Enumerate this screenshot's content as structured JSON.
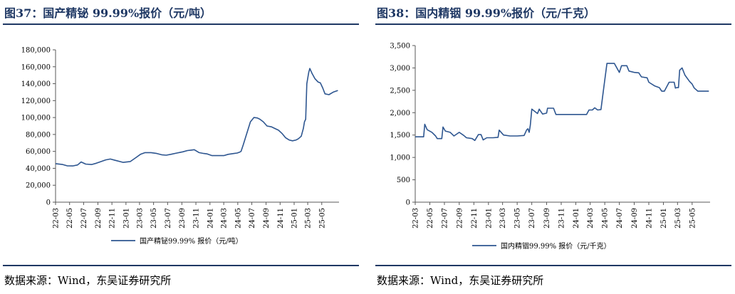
{
  "panels": [
    {
      "title": "图37：国产精铋 99.99%报价（元/吨）",
      "source": "数据来源：Wind，东吴证券研究所"
    },
    {
      "title": "图38：国内精铟 99.99%报价（元/千克）",
      "source": "数据来源：Wind，东吴证券研究所"
    }
  ],
  "colors": {
    "line": "#2e5690",
    "text": "#1f3864",
    "axis": "#595959"
  },
  "chart_data": [
    {
      "type": "line",
      "ylim": [
        0,
        180000
      ],
      "yticks": [
        0,
        20000,
        40000,
        60000,
        80000,
        100000,
        120000,
        140000,
        160000,
        180000
      ],
      "ytick_labels": [
        "0",
        "20,000",
        "40,000",
        "60,000",
        "80,000",
        "100,000",
        "120,000",
        "140,000",
        "160,000",
        "180,000"
      ],
      "xlim": [
        "2022-03-01",
        "2025-07-15"
      ],
      "xtick_labels": [
        "22-03",
        "22-05",
        "22-07",
        "22-09",
        "22-11",
        "23-01",
        "23-03",
        "23-05",
        "23-07",
        "23-09",
        "23-11",
        "24-01",
        "24-03",
        "24-05",
        "24-07",
        "24-09",
        "24-11",
        "25-01",
        "25-03",
        "25-05"
      ],
      "series": [
        {
          "name": "国产精铋99.99% 报价（元/吨）",
          "x": [
            "2022-03-01",
            "2022-04-01",
            "2022-04-20",
            "2022-05-15",
            "2022-06-05",
            "2022-06-20",
            "2022-07-10",
            "2022-08-05",
            "2022-08-25",
            "2022-09-10",
            "2022-10-05",
            "2022-10-25",
            "2022-11-15",
            "2022-12-20",
            "2023-01-20",
            "2023-02-15",
            "2023-03-05",
            "2023-03-25",
            "2023-04-20",
            "2023-05-15",
            "2023-06-05",
            "2023-06-25",
            "2023-07-15",
            "2023-08-10",
            "2023-09-05",
            "2023-09-25",
            "2023-10-10",
            "2023-10-25",
            "2023-11-15",
            "2023-12-05",
            "2023-12-20",
            "2024-01-10",
            "2024-02-10",
            "2024-03-01",
            "2024-03-20",
            "2024-04-15",
            "2024-04-28",
            "2024-05-08",
            "2024-05-15",
            "2024-05-25",
            "2024-06-10",
            "2024-06-25",
            "2024-07-10",
            "2024-07-25",
            "2024-08-05",
            "2024-08-20",
            "2024-09-05",
            "2024-09-25",
            "2024-10-10",
            "2024-10-25",
            "2024-11-10",
            "2024-11-25",
            "2024-12-10",
            "2024-12-25",
            "2025-01-10",
            "2025-01-20",
            "2025-02-01",
            "2025-02-10",
            "2025-02-15",
            "2025-02-20",
            "2025-02-25",
            "2025-03-05",
            "2025-03-10",
            "2025-03-20",
            "2025-04-01",
            "2025-04-15",
            "2025-04-25",
            "2025-05-05",
            "2025-05-15",
            "2025-06-01",
            "2025-06-20",
            "2025-07-10"
          ],
          "y": [
            45500,
            44500,
            43000,
            42800,
            44000,
            47500,
            45000,
            44500,
            46000,
            47500,
            50000,
            51000,
            49500,
            47000,
            48000,
            53000,
            56500,
            58500,
            58500,
            57500,
            56000,
            55500,
            56500,
            58000,
            59500,
            61000,
            61500,
            62000,
            58500,
            57500,
            57000,
            55000,
            55000,
            55000,
            56500,
            57500,
            58000,
            59000,
            60000,
            68000,
            82000,
            95000,
            100000,
            99500,
            98000,
            95000,
            90000,
            89000,
            87000,
            85000,
            81000,
            76000,
            73500,
            72500,
            73500,
            75000,
            78000,
            87000,
            95000,
            98000,
            140000,
            153000,
            158000,
            152000,
            146000,
            142000,
            141000,
            135000,
            128000,
            127000,
            130000,
            132000
          ]
        }
      ]
    },
    {
      "type": "line",
      "ylim": [
        0,
        3500
      ],
      "yticks": [
        0,
        500,
        1000,
        1500,
        2000,
        2500,
        3000,
        3500
      ],
      "ytick_labels": [
        "0",
        "500",
        "1,000",
        "1,500",
        "2,000",
        "2,500",
        "3,000",
        "3,500"
      ],
      "xlim": [
        "2022-03-01",
        "2025-07-15"
      ],
      "xtick_labels": [
        "22-03",
        "22-05",
        "22-07",
        "22-09",
        "22-11",
        "23-01",
        "23-03",
        "23-05",
        "23-07",
        "23-09",
        "23-11",
        "24-01",
        "24-03",
        "24-05",
        "24-07",
        "24-09",
        "24-11",
        "25-01",
        "25-03",
        "25-05"
      ],
      "series": [
        {
          "name": "国内精铟99.99% 报价（元/千克）",
          "x": [
            "2022-03-01",
            "2022-04-05",
            "2022-04-10",
            "2022-04-20",
            "2022-05-10",
            "2022-05-25",
            "2022-06-01",
            "2022-06-20",
            "2022-06-25",
            "2022-07-05",
            "2022-07-25",
            "2022-08-10",
            "2022-09-01",
            "2022-09-20",
            "2022-10-01",
            "2022-10-25",
            "2022-11-05",
            "2022-11-20",
            "2022-12-01",
            "2022-12-10",
            "2022-12-25",
            "2023-01-20",
            "2023-02-10",
            "2023-02-15",
            "2023-03-05",
            "2023-04-01",
            "2023-05-01",
            "2023-05-30",
            "2023-06-10",
            "2023-06-15",
            "2023-06-20",
            "2023-06-25",
            "2023-07-01",
            "2023-07-25",
            "2023-08-01",
            "2023-08-15",
            "2023-09-01",
            "2023-09-05",
            "2023-09-30",
            "2023-10-10",
            "2023-11-15",
            "2023-12-15",
            "2024-01-15",
            "2024-02-15",
            "2024-02-25",
            "2024-03-10",
            "2024-03-20",
            "2024-04-01",
            "2024-04-15",
            "2024-04-25",
            "2024-05-10",
            "2024-06-10",
            "2024-07-01",
            "2024-07-10",
            "2024-08-01",
            "2024-08-10",
            "2024-09-01",
            "2024-09-20",
            "2024-10-01",
            "2024-10-25",
            "2024-11-01",
            "2024-11-25",
            "2024-12-15",
            "2024-12-25",
            "2025-01-05",
            "2025-01-25",
            "2025-02-15",
            "2025-02-20",
            "2025-02-25",
            "2025-03-05",
            "2025-03-10",
            "2025-03-20",
            "2025-04-01",
            "2025-04-20",
            "2025-05-01",
            "2025-05-10",
            "2025-05-25",
            "2025-07-10"
          ],
          "y": [
            1460,
            1460,
            1740,
            1620,
            1560,
            1480,
            1420,
            1420,
            1680,
            1590,
            1560,
            1480,
            1560,
            1490,
            1440,
            1420,
            1380,
            1510,
            1510,
            1390,
            1440,
            1440,
            1450,
            1610,
            1500,
            1480,
            1480,
            1490,
            1620,
            1640,
            1560,
            1720,
            2080,
            1980,
            2080,
            1970,
            1990,
            2100,
            2100,
            1960,
            1960,
            1960,
            1960,
            1960,
            2060,
            2060,
            2110,
            2060,
            2070,
            2480,
            3100,
            3100,
            2900,
            3050,
            3050,
            2930,
            2900,
            2890,
            2800,
            2780,
            2680,
            2600,
            2560,
            2480,
            2480,
            2680,
            2680,
            2550,
            2560,
            2560,
            2950,
            3000,
            2840,
            2700,
            2640,
            2550,
            2480,
            2480
          ]
        }
      ]
    }
  ]
}
